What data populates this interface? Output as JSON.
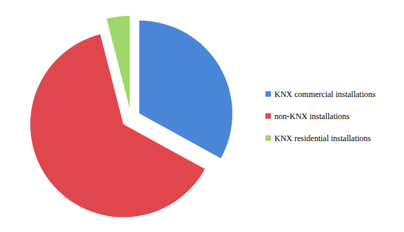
{
  "chart_data": {
    "type": "pie",
    "categories": [
      "KNX commercial installations",
      "non-KNX installations",
      "KNX residential installations"
    ],
    "values": [
      33,
      63,
      4
    ],
    "colors": [
      "#4a86d8",
      "#e0474c",
      "#9fd86a"
    ],
    "legend": "right"
  }
}
